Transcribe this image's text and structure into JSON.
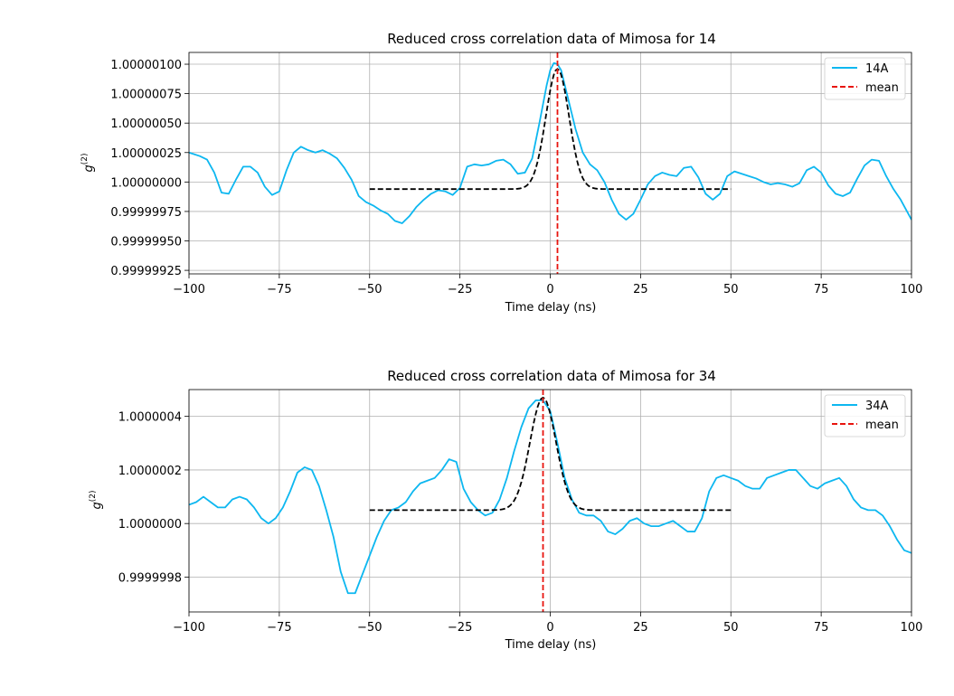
{
  "chart_data": [
    {
      "type": "line",
      "title": "Reduced cross correlation data of Mimosa for 14",
      "xlabel": "Time delay (ns)",
      "ylabel_base": "g",
      "ylabel_sup": "(2)",
      "xlim": [
        -100,
        100
      ],
      "ylim": [
        0.99999922,
        1.0000011
      ],
      "x_ticks": [
        -100,
        -75,
        -50,
        -25,
        0,
        25,
        50,
        75,
        100
      ],
      "x_tick_labels": [
        "−100",
        "−75",
        "−50",
        "−25",
        "0",
        "25",
        "50",
        "75",
        "100"
      ],
      "y_ticks": [
        0.99999925,
        0.9999995,
        0.99999975,
        1.0,
        1.00000025,
        1.0000005,
        1.00000075,
        1.000001
      ],
      "y_tick_labels": [
        "0.99999925",
        "0.99999950",
        "0.99999975",
        "1.00000000",
        "1.00000025",
        "1.00000050",
        "1.00000075",
        "1.00000100"
      ],
      "grid": true,
      "legend_position": "top-right",
      "series": [
        {
          "name": "14A",
          "color": "#0db7f0",
          "style": "solid",
          "x": [
            -100,
            -97,
            -95,
            -93,
            -91,
            -89,
            -87,
            -85,
            -83,
            -81,
            -79,
            -77,
            -75,
            -73,
            -71,
            -69,
            -67,
            -65,
            -63,
            -61,
            -59,
            -57,
            -55,
            -53,
            -51,
            -49,
            -47,
            -45,
            -43,
            -41,
            -39,
            -37,
            -35,
            -33,
            -31,
            -29,
            -27,
            -25,
            -23,
            -21,
            -19,
            -17,
            -15,
            -13,
            -11,
            -9,
            -7,
            -5,
            -3,
            -1,
            0,
            1,
            2,
            3,
            5,
            7,
            9,
            11,
            13,
            15,
            17,
            19,
            21,
            23,
            25,
            27,
            29,
            31,
            33,
            35,
            37,
            39,
            41,
            43,
            45,
            47,
            49,
            51,
            53,
            55,
            57,
            59,
            61,
            63,
            65,
            67,
            69,
            71,
            73,
            75,
            77,
            79,
            81,
            83,
            85,
            87,
            89,
            91,
            93,
            95,
            97,
            100
          ],
          "y": [
            1.00000025,
            1.00000022,
            1.00000019,
            1.00000008,
            0.99999991,
            0.9999999,
            1.00000002,
            1.00000013,
            1.00000013,
            1.00000008,
            0.99999996,
            0.99999989,
            0.99999992,
            1.0000001,
            1.00000025,
            1.0000003,
            1.00000027,
            1.00000025,
            1.00000027,
            1.00000024,
            1.0000002,
            1.00000012,
            1.00000002,
            0.99999988,
            0.99999983,
            0.9999998,
            0.99999976,
            0.99999973,
            0.99999967,
            0.99999965,
            0.99999971,
            0.99999979,
            0.99999985,
            0.9999999,
            0.99999993,
            0.99999992,
            0.99999989,
            0.99999995,
            1.00000013,
            1.00000015,
            1.00000014,
            1.00000015,
            1.00000018,
            1.00000019,
            1.00000015,
            1.00000007,
            1.00000008,
            1.0000002,
            1.0000005,
            1.00000082,
            1.00000095,
            1.00000101,
            1.000001,
            1.00000095,
            1.0000007,
            1.00000045,
            1.00000025,
            1.00000015,
            1.0000001,
            1.0,
            0.99999985,
            0.99999973,
            0.99999968,
            0.99999973,
            0.99999985,
            0.99999998,
            1.00000005,
            1.00000008,
            1.00000006,
            1.00000005,
            1.00000012,
            1.00000013,
            1.00000004,
            0.9999999,
            0.99999985,
            0.9999999,
            1.00000005,
            1.00000009,
            1.00000007,
            1.00000005,
            1.00000003,
            1.0,
            0.99999998,
            0.99999999,
            0.99999998,
            0.99999996,
            0.99999999,
            1.0000001,
            1.00000013,
            1.00000008,
            0.99999997,
            0.9999999,
            0.99999988,
            0.99999991,
            1.00000003,
            1.00000014,
            1.00000019,
            1.00000018,
            1.00000005,
            0.99999994,
            0.99999985,
            0.99999968
          ]
        },
        {
          "name": "",
          "color": "#000000",
          "style": "dashed",
          "fit": {
            "x_range": [
              -50,
              50
            ],
            "baseline": 0.99999994,
            "amplitude": 1.02e-06,
            "center": 2,
            "sigma": 3.2
          }
        },
        {
          "name": "mean",
          "color": "#e8140e",
          "style": "dashed",
          "vline": 2
        }
      ]
    },
    {
      "type": "line",
      "title": "Reduced cross correlation data of Mimosa for 34",
      "xlabel": "Time delay (ns)",
      "ylabel_base": "g",
      "ylabel_sup": "(2)",
      "xlim": [
        -100,
        100
      ],
      "ylim": [
        0.99999967,
        1.0000005
      ],
      "x_ticks": [
        -100,
        -75,
        -50,
        -25,
        0,
        25,
        50,
        75,
        100
      ],
      "x_tick_labels": [
        "−100",
        "−75",
        "−50",
        "−25",
        "0",
        "25",
        "50",
        "75",
        "100"
      ],
      "y_ticks": [
        0.9999998,
        1.0,
        1.0000002,
        1.0000004
      ],
      "y_tick_labels": [
        "0.9999998",
        "1.0000000",
        "1.0000002",
        "1.0000004"
      ],
      "grid": true,
      "legend_position": "top-right",
      "series": [
        {
          "name": "34A",
          "color": "#0db7f0",
          "style": "solid",
          "x": [
            -100,
            -98,
            -96,
            -94,
            -92,
            -90,
            -88,
            -86,
            -84,
            -82,
            -80,
            -78,
            -76,
            -74,
            -72,
            -70,
            -68,
            -66,
            -64,
            -62,
            -60,
            -58,
            -56,
            -54,
            -52,
            -50,
            -48,
            -46,
            -44,
            -42,
            -40,
            -38,
            -36,
            -34,
            -32,
            -30,
            -28,
            -26,
            -24,
            -22,
            -20,
            -18,
            -16,
            -14,
            -12,
            -10,
            -8,
            -6,
            -4,
            -2,
            0,
            2,
            4,
            6,
            8,
            10,
            12,
            14,
            16,
            18,
            20,
            22,
            24,
            26,
            28,
            30,
            32,
            34,
            36,
            38,
            40,
            42,
            44,
            46,
            48,
            50,
            52,
            54,
            56,
            58,
            60,
            62,
            64,
            66,
            68,
            70,
            72,
            74,
            76,
            78,
            80,
            82,
            84,
            86,
            88,
            90,
            92,
            94,
            96,
            98,
            100
          ],
          "y": [
            1.00000007,
            1.00000008,
            1.0000001,
            1.00000008,
            1.00000006,
            1.00000006,
            1.00000009,
            1.0000001,
            1.00000009,
            1.00000006,
            1.00000002,
            1.0,
            1.00000002,
            1.00000006,
            1.00000012,
            1.00000019,
            1.00000021,
            1.0000002,
            1.00000014,
            1.00000005,
            0.99999995,
            0.99999982,
            0.99999974,
            0.99999974,
            0.99999981,
            0.99999988,
            0.99999995,
            1.00000001,
            1.00000005,
            1.00000006,
            1.00000008,
            1.00000012,
            1.00000015,
            1.00000016,
            1.00000017,
            1.0000002,
            1.00000024,
            1.00000023,
            1.00000013,
            1.00000008,
            1.00000005,
            1.00000003,
            1.00000004,
            1.00000009,
            1.00000017,
            1.00000027,
            1.00000036,
            1.00000043,
            1.00000046,
            1.00000046,
            1.00000042,
            1.0000003,
            1.00000017,
            1.00000009,
            1.00000004,
            1.00000003,
            1.00000003,
            1.00000001,
            0.99999997,
            0.99999996,
            0.99999998,
            1.00000001,
            1.00000002,
            1.0,
            0.99999999,
            0.99999999,
            1.0,
            1.00000001,
            0.99999999,
            0.99999997,
            0.99999997,
            1.00000002,
            1.00000012,
            1.00000017,
            1.00000018,
            1.00000017,
            1.00000016,
            1.00000014,
            1.00000013,
            1.00000013,
            1.00000017,
            1.00000018,
            1.00000019,
            1.0000002,
            1.0000002,
            1.00000017,
            1.00000014,
            1.00000013,
            1.00000015,
            1.00000016,
            1.00000017,
            1.00000014,
            1.00000009,
            1.00000006,
            1.00000005,
            1.00000005,
            1.00000003,
            0.99999999,
            0.99999994,
            0.9999999,
            0.99999989
          ]
        },
        {
          "name": "",
          "color": "#000000",
          "style": "dashed",
          "fit": {
            "x_range": [
              -50,
              50
            ],
            "baseline": 1.00000005,
            "amplitude": 4.2e-07,
            "center": -2,
            "sigma": 3.6
          }
        },
        {
          "name": "mean",
          "color": "#e8140e",
          "style": "dashed",
          "vline": -2
        }
      ]
    }
  ]
}
